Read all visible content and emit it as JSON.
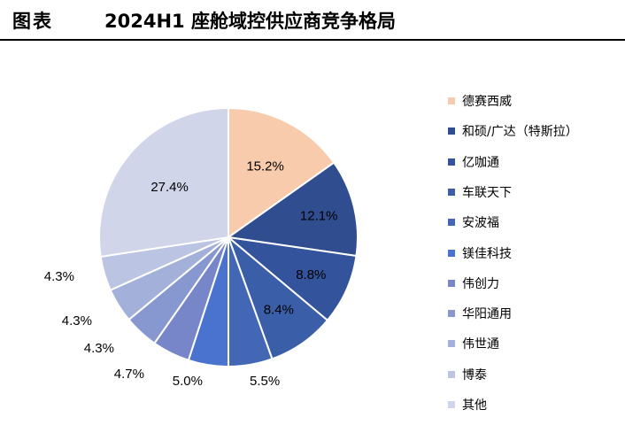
{
  "header": {
    "figure_label": "图表",
    "title": "2024H1 座舱域控供应商竞争格局"
  },
  "chart_data": {
    "type": "pie",
    "title": "2024H1 座舱域控供应商竞争格局",
    "legend_position": "right",
    "start_angle_deg": 0,
    "direction": "clockwise",
    "slices": [
      {
        "name": "德赛西威",
        "value": 15.2,
        "label": "15.2%",
        "color": "#f7cbac"
      },
      {
        "name": "和硕/广达（特斯拉）",
        "value": 12.1,
        "label": "12.1%",
        "color": "#2f4d8f"
      },
      {
        "name": "亿咖通",
        "value": 8.8,
        "label": "8.8%",
        "color": "#33549c"
      },
      {
        "name": "车联天下",
        "value": 8.4,
        "label": "8.4%",
        "color": "#3a5fa8"
      },
      {
        "name": "安波福",
        "value": 5.5,
        "label": "5.5%",
        "color": "#4167b5"
      },
      {
        "name": "镁佳科技",
        "value": 5.0,
        "label": "5.0%",
        "color": "#4a73d0"
      },
      {
        "name": "伟创力",
        "value": 4.7,
        "label": "4.7%",
        "color": "#7686c8"
      },
      {
        "name": "华阳通用",
        "value": 4.3,
        "label": "4.3%",
        "color": "#8797cf"
      },
      {
        "name": "伟世通",
        "value": 4.3,
        "label": "4.3%",
        "color": "#a3b0d9"
      },
      {
        "name": "博泰",
        "value": 4.3,
        "label": "4.3%",
        "color": "#bcc4e3"
      },
      {
        "name": "其他",
        "value": 27.4,
        "label": "27.4%",
        "color": "#d0d5ea"
      }
    ]
  }
}
